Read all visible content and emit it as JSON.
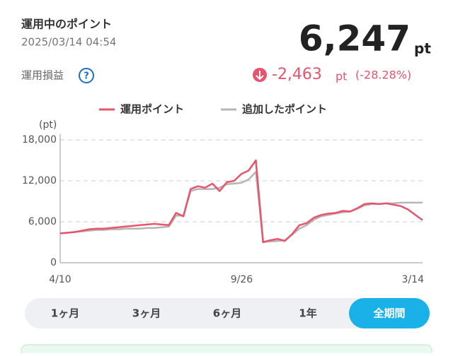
{
  "header": {
    "title": "運用中のポイント",
    "timestamp": "2025/03/14 04:54",
    "points": "6,247",
    "points_unit": "pt",
    "pl_label": "運用損益",
    "help": "?",
    "pl_value": "-2,463",
    "pl_unit": "pt",
    "pl_percent": "(-28.28%)"
  },
  "chart_data": {
    "type": "line",
    "y_label": "(pt)",
    "categories": [
      "4/10",
      null,
      null,
      null,
      null,
      null,
      null,
      null,
      null,
      null,
      null,
      null,
      null,
      null,
      null,
      null,
      null,
      null,
      null,
      null,
      null,
      null,
      null,
      null,
      null,
      null,
      null,
      "9/26",
      null,
      null,
      null,
      null,
      null,
      null,
      null,
      null,
      null,
      null,
      null,
      null,
      null,
      null,
      null,
      null,
      null,
      null,
      null,
      null,
      null,
      null,
      "3/14"
    ],
    "series": [
      {
        "name": "運用ポイント",
        "color": "#e8546b",
        "values": [
          4300,
          4400,
          4500,
          4700,
          4900,
          5000,
          5000,
          5100,
          5200,
          5300,
          5400,
          5500,
          5600,
          5700,
          5600,
          5500,
          7300,
          6800,
          10800,
          11200,
          11000,
          11600,
          10500,
          11800,
          12000,
          13000,
          13500,
          15000,
          3000,
          3300,
          3500,
          3200,
          4200,
          5500,
          5800,
          6600,
          7000,
          7200,
          7300,
          7600,
          7500,
          8000,
          8600,
          8700,
          8600,
          8700,
          8500,
          8300,
          7800,
          7000,
          6247
        ]
      },
      {
        "name": "追加したポイント",
        "color": "#b5b5b5",
        "values": [
          4300,
          4400,
          4500,
          4600,
          4700,
          4800,
          4800,
          4900,
          4900,
          5000,
          5000,
          5000,
          5100,
          5100,
          5200,
          5300,
          6900,
          6900,
          10500,
          10800,
          10800,
          10800,
          11000,
          11500,
          11600,
          11700,
          12200,
          13300,
          3100,
          3100,
          3200,
          3300,
          4100,
          5000,
          5500,
          6300,
          6800,
          7000,
          7200,
          7400,
          7500,
          7900,
          8400,
          8600,
          8600,
          8700,
          8700,
          8800,
          8800,
          8800,
          8800
        ]
      }
    ],
    "ylim": [
      0,
      18000
    ],
    "yticks": [
      0,
      {
        "value": 6000,
        "label": "6,000"
      },
      {
        "value": 12000,
        "label": "12,000"
      },
      {
        "value": 18000,
        "label": "18,000"
      }
    ],
    "grid": true
  },
  "period_tabs": {
    "options": [
      "1ヶ月",
      "3ヶ月",
      "6ヶ月",
      "1年",
      "全期間"
    ],
    "selected": 4
  }
}
